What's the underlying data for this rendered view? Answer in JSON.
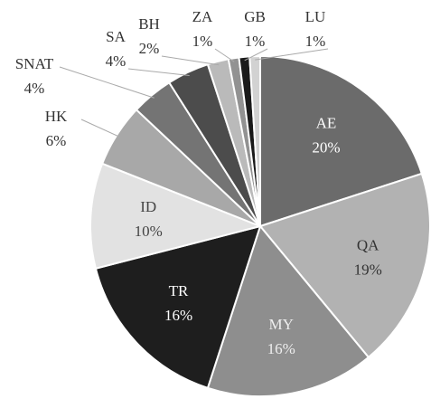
{
  "chart_data": {
    "type": "pie",
    "categories": [
      "AE",
      "QA",
      "MY",
      "TR",
      "ID",
      "HK",
      "SNAT",
      "SA",
      "BH",
      "ZA",
      "GB",
      "LU"
    ],
    "values": [
      20,
      19,
      16,
      16,
      10,
      6,
      4,
      4,
      2,
      1,
      1,
      1
    ],
    "value_labels": [
      "20%",
      "19%",
      "16%",
      "16%",
      "10%",
      "6%",
      "4%",
      "4%",
      "2%",
      "1%",
      "1%",
      "1%"
    ],
    "colors": [
      "#6b6b6b",
      "#b2b2b2",
      "#8e8e8e",
      "#1e1e1e",
      "#e2e2e2",
      "#a8a8a8",
      "#747474",
      "#4c4c4c",
      "#bababa",
      "#929292",
      "#1a1a1a",
      "#d2d2d2"
    ]
  }
}
